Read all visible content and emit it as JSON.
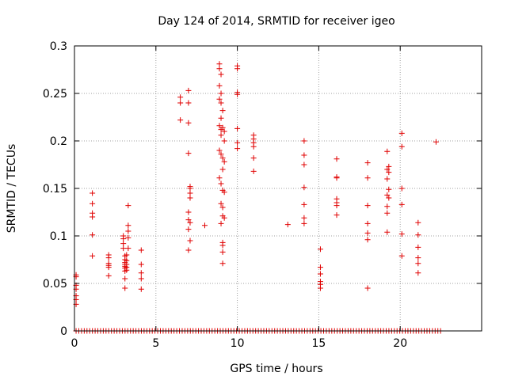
{
  "colors": {
    "series": "#e00000",
    "grid": "#a0a0a0",
    "axis": "#000000",
    "background": "#ffffff"
  },
  "chart_data": {
    "type": "scatter",
    "title": "Day 124 of 2014, SRMTID for receiver igeo",
    "xlabel": "GPS time / hours",
    "ylabel": "SRMTID / TECUs",
    "xlim": [
      0,
      25
    ],
    "ylim": [
      0,
      0.3
    ],
    "xticks": [
      0,
      5,
      10,
      15,
      20
    ],
    "xtick_labels": [
      "0",
      "5",
      "10",
      "15",
      "20"
    ],
    "yticks": [
      0,
      0.05,
      0.1,
      0.15,
      0.2,
      0.25,
      0.3
    ],
    "ytick_labels": [
      "0",
      "0.05",
      "0.1",
      "0.15",
      "0.2",
      "0.25",
      "0.3"
    ],
    "grid": true,
    "marker": "plus",
    "series": [
      {
        "name": "SRMTID",
        "points": [
          [
            0.1,
            0.059
          ],
          [
            0.1,
            0.057
          ],
          [
            0.1,
            0.048
          ],
          [
            0.1,
            0.044
          ],
          [
            0.1,
            0.037
          ],
          [
            0.1,
            0.033
          ],
          [
            0.1,
            0.028
          ],
          [
            1.1,
            0.145
          ],
          [
            1.1,
            0.134
          ],
          [
            1.1,
            0.124
          ],
          [
            1.1,
            0.12
          ],
          [
            1.1,
            0.101
          ],
          [
            1.1,
            0.079
          ],
          [
            2.1,
            0.08
          ],
          [
            2.1,
            0.077
          ],
          [
            2.1,
            0.071
          ],
          [
            2.1,
            0.069
          ],
          [
            2.1,
            0.067
          ],
          [
            2.1,
            0.058
          ],
          [
            3.0,
            0.1
          ],
          [
            3.0,
            0.097
          ],
          [
            3.0,
            0.092
          ],
          [
            3.0,
            0.087
          ],
          [
            3.1,
            0.079
          ],
          [
            3.1,
            0.075
          ],
          [
            3.1,
            0.072
          ],
          [
            3.1,
            0.07
          ],
          [
            3.1,
            0.068
          ],
          [
            3.1,
            0.066
          ],
          [
            3.1,
            0.063
          ],
          [
            3.1,
            0.055
          ],
          [
            3.1,
            0.045
          ],
          [
            3.3,
            0.132
          ],
          [
            3.3,
            0.111
          ],
          [
            3.3,
            0.105
          ],
          [
            3.3,
            0.098
          ],
          [
            3.3,
            0.087
          ],
          [
            3.2,
            0.08
          ],
          [
            3.2,
            0.074
          ],
          [
            3.2,
            0.07
          ],
          [
            3.2,
            0.067
          ],
          [
            3.2,
            0.064
          ],
          [
            4.1,
            0.085
          ],
          [
            4.1,
            0.07
          ],
          [
            4.1,
            0.061
          ],
          [
            4.1,
            0.055
          ],
          [
            4.1,
            0.044
          ],
          [
            6.5,
            0.246
          ],
          [
            6.5,
            0.24
          ],
          [
            6.5,
            0.222
          ],
          [
            7.0,
            0.253
          ],
          [
            7.0,
            0.24
          ],
          [
            7.0,
            0.219
          ],
          [
            7.0,
            0.187
          ],
          [
            7.1,
            0.152
          ],
          [
            7.1,
            0.15
          ],
          [
            7.1,
            0.145
          ],
          [
            7.1,
            0.14
          ],
          [
            7.0,
            0.125
          ],
          [
            7.0,
            0.117
          ],
          [
            7.1,
            0.114
          ],
          [
            7.0,
            0.107
          ],
          [
            7.1,
            0.095
          ],
          [
            7.0,
            0.085
          ],
          [
            8.0,
            0.111
          ],
          [
            8.9,
            0.281
          ],
          [
            8.9,
            0.276
          ],
          [
            9.0,
            0.27
          ],
          [
            8.9,
            0.258
          ],
          [
            9.0,
            0.25
          ],
          [
            8.9,
            0.244
          ],
          [
            9.0,
            0.24
          ],
          [
            9.1,
            0.232
          ],
          [
            9.0,
            0.224
          ],
          [
            8.9,
            0.216
          ],
          [
            9.0,
            0.212
          ],
          [
            9.1,
            0.214
          ],
          [
            9.2,
            0.21
          ],
          [
            9.0,
            0.206
          ],
          [
            9.2,
            0.2
          ],
          [
            8.9,
            0.19
          ],
          [
            9.0,
            0.186
          ],
          [
            9.1,
            0.182
          ],
          [
            9.2,
            0.178
          ],
          [
            9.1,
            0.17
          ],
          [
            8.9,
            0.161
          ],
          [
            9.0,
            0.155
          ],
          [
            9.1,
            0.148
          ],
          [
            9.2,
            0.146
          ],
          [
            9.0,
            0.134
          ],
          [
            9.1,
            0.13
          ],
          [
            9.1,
            0.121
          ],
          [
            9.2,
            0.119
          ],
          [
            9.0,
            0.113
          ],
          [
            9.1,
            0.093
          ],
          [
            9.1,
            0.09
          ],
          [
            9.1,
            0.083
          ],
          [
            9.1,
            0.071
          ],
          [
            10.0,
            0.279
          ],
          [
            10.0,
            0.276
          ],
          [
            10.0,
            0.251
          ],
          [
            10.0,
            0.249
          ],
          [
            10.0,
            0.213
          ],
          [
            10.0,
            0.198
          ],
          [
            10.0,
            0.192
          ],
          [
            11.0,
            0.206
          ],
          [
            11.0,
            0.202
          ],
          [
            11.0,
            0.198
          ],
          [
            11.0,
            0.194
          ],
          [
            11.0,
            0.182
          ],
          [
            11.0,
            0.168
          ],
          [
            13.1,
            0.112
          ],
          [
            14.1,
            0.2
          ],
          [
            14.1,
            0.185
          ],
          [
            14.1,
            0.175
          ],
          [
            14.1,
            0.151
          ],
          [
            14.1,
            0.133
          ],
          [
            14.1,
            0.119
          ],
          [
            14.1,
            0.113
          ],
          [
            15.1,
            0.086
          ],
          [
            15.1,
            0.067
          ],
          [
            15.1,
            0.06
          ],
          [
            15.1,
            0.052
          ],
          [
            15.1,
            0.049
          ],
          [
            15.1,
            0.045
          ],
          [
            16.1,
            0.181
          ],
          [
            16.1,
            0.162
          ],
          [
            16.1,
            0.161
          ],
          [
            16.1,
            0.139
          ],
          [
            16.1,
            0.135
          ],
          [
            16.1,
            0.132
          ],
          [
            16.1,
            0.122
          ],
          [
            18.0,
            0.177
          ],
          [
            18.0,
            0.161
          ],
          [
            18.0,
            0.132
          ],
          [
            18.0,
            0.113
          ],
          [
            18.0,
            0.103
          ],
          [
            18.0,
            0.096
          ],
          [
            18.0,
            0.045
          ],
          [
            19.2,
            0.189
          ],
          [
            19.3,
            0.173
          ],
          [
            19.2,
            0.17
          ],
          [
            19.3,
            0.167
          ],
          [
            19.2,
            0.16
          ],
          [
            19.3,
            0.149
          ],
          [
            19.2,
            0.143
          ],
          [
            19.3,
            0.14
          ],
          [
            19.2,
            0.131
          ],
          [
            19.2,
            0.124
          ],
          [
            19.2,
            0.104
          ],
          [
            20.1,
            0.208
          ],
          [
            20.1,
            0.194
          ],
          [
            20.1,
            0.15
          ],
          [
            20.1,
            0.133
          ],
          [
            20.1,
            0.102
          ],
          [
            20.1,
            0.079
          ],
          [
            21.1,
            0.114
          ],
          [
            21.1,
            0.101
          ],
          [
            21.1,
            0.088
          ],
          [
            21.1,
            0.077
          ],
          [
            21.1,
            0.071
          ],
          [
            21.1,
            0.061
          ],
          [
            22.2,
            0.199
          ]
        ],
        "zero_baseline": {
          "value": 0,
          "x_start": 0.1,
          "x_end": 22.5,
          "x_step": 0.167
        }
      }
    ]
  }
}
